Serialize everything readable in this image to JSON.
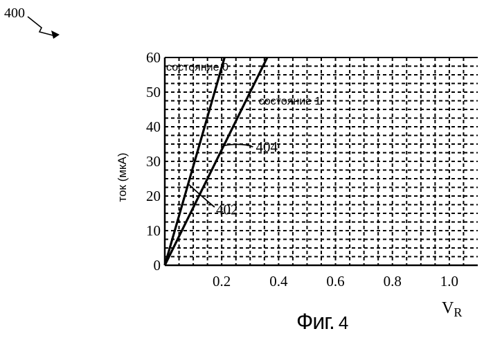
{
  "figure": {
    "reference": "400",
    "caption_word": "Фиг.",
    "caption_number": "4"
  },
  "chart_data": {
    "type": "line",
    "xlabel": "V",
    "xlabel_subscript": "R",
    "ylabel": "ток (мкА)",
    "xlim": [
      0,
      1.1
    ],
    "ylim": [
      0,
      60
    ],
    "x_ticks": [
      "0.2",
      "0.4",
      "0.6",
      "0.8",
      "1.0"
    ],
    "x_tick_values": [
      0.2,
      0.4,
      0.6,
      0.8,
      1.0
    ],
    "y_ticks": [
      "0",
      "10",
      "20",
      "30",
      "40",
      "50",
      "60"
    ],
    "y_tick_values": [
      0,
      10,
      20,
      30,
      40,
      50,
      60
    ],
    "grid": true,
    "series": [
      {
        "name": "состояние 0",
        "x": [
          0,
          0.21
        ],
        "y": [
          0,
          60
        ]
      },
      {
        "name": "состояние 1",
        "x": [
          0,
          0.36
        ],
        "y": [
          0,
          60
        ]
      }
    ],
    "annotations": [
      {
        "text": "402",
        "x": 0.18,
        "y": 16.5
      },
      {
        "text": "404",
        "x": 0.32,
        "y": 34
      }
    ],
    "line_color": "#000000"
  }
}
